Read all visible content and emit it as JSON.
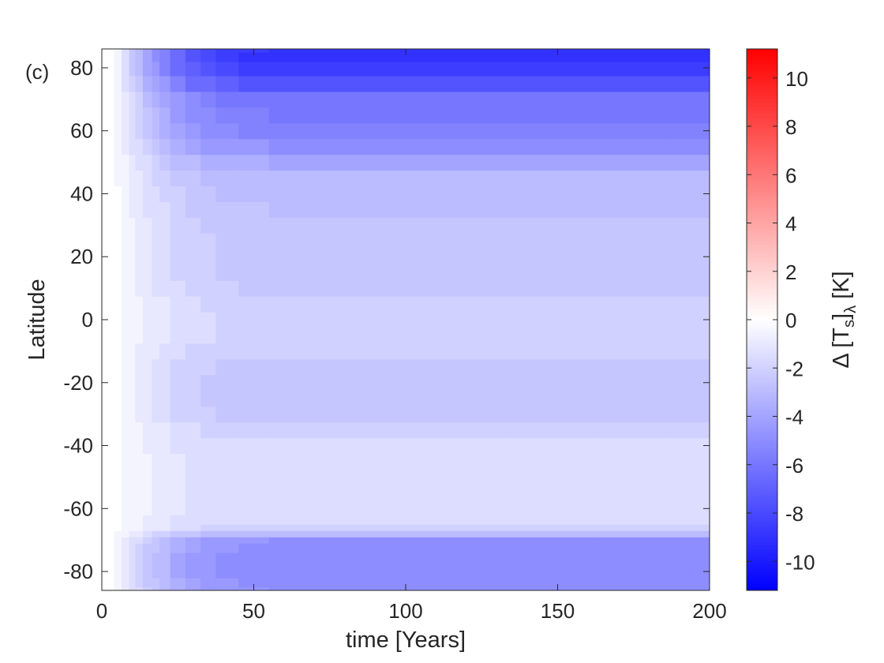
{
  "chart_data": {
    "type": "heatmap",
    "panel_label": "(c)",
    "xlabel": "time [Years]",
    "ylabel": "Latitude",
    "xlim": [
      0,
      200
    ],
    "ylim": [
      -86,
      86
    ],
    "x_ticks": [
      0,
      50,
      100,
      150,
      200
    ],
    "y_ticks": [
      -80,
      -60,
      -40,
      -20,
      0,
      20,
      40,
      60,
      80
    ],
    "colorbar": {
      "label_main": "Δ [T",
      "label_sub": "s",
      "label_after": "]",
      "label_sub2": "λ",
      "label_unit": " [K]",
      "range": [
        -11.2,
        11.2
      ],
      "ticks": [
        -10,
        -8,
        -6,
        -4,
        -2,
        0,
        2,
        4,
        6,
        8,
        10
      ],
      "colormap": {
        "min": "#0000ff",
        "mid": "#ffffff",
        "max": "#ff0000"
      }
    },
    "contour_levels_step": 0.5,
    "colored_range_note": "field values roughly 0 to -11 K",
    "x": [
      0,
      3,
      5,
      8,
      10,
      12,
      15,
      18,
      20,
      25,
      30,
      35,
      40,
      50,
      60,
      80,
      100,
      120,
      150,
      175,
      200
    ],
    "y": [
      -86,
      -84,
      -80,
      -76,
      -72,
      -70,
      -68,
      -66,
      -64,
      -60,
      -55,
      -50,
      -45,
      -40,
      -35,
      -30,
      -25,
      -20,
      -15,
      -10,
      -5,
      0,
      5,
      10,
      15,
      20,
      25,
      30,
      35,
      40,
      45,
      50,
      55,
      60,
      65,
      70,
      75,
      80,
      84,
      86
    ],
    "z_profile_final": [
      -4.8,
      -5.0,
      -5.1,
      -5.2,
      -5.0,
      -4.8,
      -3.2,
      -2.0,
      -1.7,
      -1.6,
      -1.6,
      -1.6,
      -1.6,
      -1.7,
      -2.0,
      -2.4,
      -2.6,
      -2.6,
      -2.5,
      -2.2,
      -1.9,
      -1.9,
      -2.0,
      -2.3,
      -2.4,
      -2.4,
      -2.4,
      -2.6,
      -2.8,
      -3.0,
      -3.2,
      -3.8,
      -4.8,
      -5.5,
      -5.8,
      -6.2,
      -7.5,
      -8.6,
      -9.0,
      -8.8
    ],
    "z_growth": [
      0,
      0.02,
      0.08,
      0.18,
      0.28,
      0.36,
      0.46,
      0.55,
      0.62,
      0.74,
      0.84,
      0.9,
      0.94,
      0.98,
      1.0,
      1.0,
      1.0,
      1.0,
      1.0,
      1.0,
      1.0
    ]
  }
}
